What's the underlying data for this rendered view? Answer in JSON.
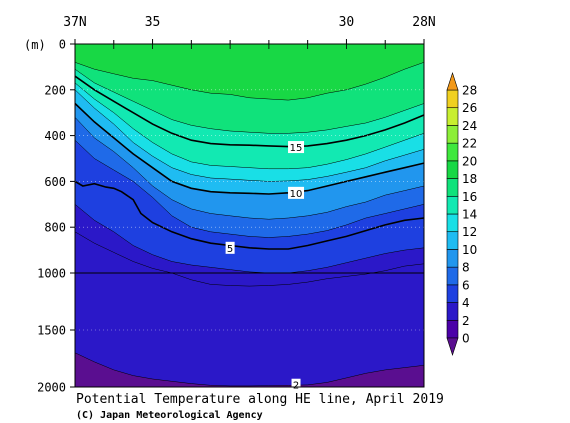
{
  "chart_data": {
    "type": "heatmap",
    "title": "Potential Temperature along HE line, April 2019",
    "credit": "(C) Japan Meteorological Agency",
    "y_unit_label": "(m)",
    "x_ticks": [
      {
        "value": 37,
        "label": "37N"
      },
      {
        "value": 35,
        "label": "35"
      },
      {
        "value": 30,
        "label": "30"
      },
      {
        "value": 28,
        "label": "28N"
      }
    ],
    "x_minor_ticks": [
      36,
      34,
      33,
      32,
      31,
      29
    ],
    "x_range": [
      37,
      28
    ],
    "y_ticks": [
      0,
      200,
      400,
      600,
      800,
      1000,
      1500,
      2000
    ],
    "y_break_depth": 1000,
    "depth_range": [
      0,
      2000
    ],
    "colorbar": {
      "levels": [
        0,
        2,
        4,
        6,
        8,
        10,
        12,
        14,
        16,
        18,
        20,
        22,
        24,
        26,
        28
      ],
      "colors": [
        "#4b00a8",
        "#2b18c8",
        "#1e40e0",
        "#1f6ae8",
        "#2196ee",
        "#1fbcf2",
        "#19dfe6",
        "#12e9b2",
        "#10e27b",
        "#18d845",
        "#3fe83d",
        "#8cef38",
        "#c8ef30",
        "#f0d020",
        "#f29818"
      ],
      "under_color": "#5a0e90",
      "over_color": "#f29818"
    },
    "contour_labels": [
      {
        "text": "15",
        "lat": 31.3,
        "depth": 450
      },
      {
        "text": "10",
        "lat": 31.3,
        "depth": 650
      },
      {
        "text": "5",
        "lat": 33.0,
        "depth": 890
      },
      {
        "text": "2",
        "lat": 31.3,
        "depth": 1980
      }
    ],
    "isotherms": [
      {
        "temp": 18,
        "points": [
          [
            37,
            80
          ],
          [
            36.5,
            110
          ],
          [
            36,
            130
          ],
          [
            35.5,
            150
          ],
          [
            35,
            160
          ],
          [
            34.5,
            180
          ],
          [
            34,
            200
          ],
          [
            33.5,
            215
          ],
          [
            33,
            220
          ],
          [
            32.5,
            235
          ],
          [
            32,
            240
          ],
          [
            31.5,
            245
          ],
          [
            31,
            235
          ],
          [
            30.5,
            215
          ],
          [
            30,
            200
          ],
          [
            29.5,
            175
          ],
          [
            29,
            145
          ],
          [
            28.5,
            110
          ],
          [
            28,
            80
          ]
        ]
      },
      {
        "temp": 16,
        "points": [
          [
            37,
            110
          ],
          [
            36.5,
            170
          ],
          [
            36,
            210
          ],
          [
            35.5,
            250
          ],
          [
            35,
            290
          ],
          [
            34.5,
            330
          ],
          [
            34,
            355
          ],
          [
            33.5,
            370
          ],
          [
            33,
            380
          ],
          [
            32.5,
            385
          ],
          [
            32,
            390
          ],
          [
            31.5,
            390
          ],
          [
            31,
            385
          ],
          [
            30.5,
            375
          ],
          [
            30,
            360
          ],
          [
            29.5,
            345
          ],
          [
            29,
            320
          ],
          [
            28.5,
            290
          ],
          [
            28,
            260
          ]
        ]
      },
      {
        "temp": 15,
        "points": [
          [
            37,
            140
          ],
          [
            36.5,
            200
          ],
          [
            36,
            250
          ],
          [
            35.5,
            300
          ],
          [
            35,
            350
          ],
          [
            34.5,
            390
          ],
          [
            34,
            420
          ],
          [
            33.5,
            435
          ],
          [
            33,
            440
          ],
          [
            32.5,
            442
          ],
          [
            32,
            445
          ],
          [
            31.5,
            448
          ],
          [
            31,
            445
          ],
          [
            30.5,
            435
          ],
          [
            30,
            420
          ],
          [
            29.5,
            400
          ],
          [
            29,
            375
          ],
          [
            28.5,
            345
          ],
          [
            28,
            310
          ]
        ]
      },
      {
        "temp": 14,
        "points": [
          [
            37,
            170
          ],
          [
            36.5,
            240
          ],
          [
            36,
            300
          ],
          [
            35.5,
            370
          ],
          [
            35,
            430
          ],
          [
            34.5,
            480
          ],
          [
            34,
            515
          ],
          [
            33.5,
            530
          ],
          [
            33,
            535
          ],
          [
            32.5,
            540
          ],
          [
            32,
            545
          ],
          [
            31.5,
            545
          ],
          [
            31,
            540
          ],
          [
            30.5,
            525
          ],
          [
            30,
            505
          ],
          [
            29.5,
            480
          ],
          [
            29,
            450
          ],
          [
            28.5,
            420
          ],
          [
            28,
            390
          ]
        ]
      },
      {
        "temp": 12,
        "points": [
          [
            37,
            200
          ],
          [
            36.5,
            280
          ],
          [
            36,
            350
          ],
          [
            35.5,
            430
          ],
          [
            35,
            490
          ],
          [
            34.5,
            540
          ],
          [
            34,
            570
          ],
          [
            33.5,
            585
          ],
          [
            33,
            590
          ],
          [
            32.5,
            595
          ],
          [
            32,
            600
          ],
          [
            31.5,
            598
          ],
          [
            31,
            592
          ],
          [
            30.5,
            578
          ],
          [
            30,
            560
          ],
          [
            29.5,
            540
          ],
          [
            29,
            510
          ],
          [
            28.5,
            485
          ],
          [
            28,
            460
          ]
        ]
      },
      {
        "temp": 10,
        "points": [
          [
            37,
            260
          ],
          [
            36.5,
            340
          ],
          [
            36,
            410
          ],
          [
            35.5,
            480
          ],
          [
            35,
            540
          ],
          [
            34.5,
            600
          ],
          [
            34,
            630
          ],
          [
            33.5,
            645
          ],
          [
            33,
            650
          ],
          [
            32.5,
            652
          ],
          [
            32,
            655
          ],
          [
            31.5,
            650
          ],
          [
            31,
            640
          ],
          [
            30.5,
            620
          ],
          [
            30,
            600
          ],
          [
            29.5,
            580
          ],
          [
            29,
            560
          ],
          [
            28.5,
            540
          ],
          [
            28,
            520
          ]
        ]
      },
      {
        "temp": 8,
        "points": [
          [
            37,
            320
          ],
          [
            36.5,
            410
          ],
          [
            36,
            470
          ],
          [
            35.5,
            540
          ],
          [
            35,
            620
          ],
          [
            34.5,
            680
          ],
          [
            34,
            720
          ],
          [
            33.5,
            740
          ],
          [
            33,
            750
          ],
          [
            32.5,
            760
          ],
          [
            32,
            765
          ],
          [
            31.5,
            760
          ],
          [
            31,
            750
          ],
          [
            30.5,
            735
          ],
          [
            30,
            710
          ],
          [
            29.5,
            690
          ],
          [
            29,
            660
          ],
          [
            28.5,
            640
          ],
          [
            28,
            620
          ]
        ]
      },
      {
        "temp": 6,
        "points": [
          [
            37,
            420
          ],
          [
            36.5,
            500
          ],
          [
            36,
            550
          ],
          [
            35.5,
            600
          ],
          [
            35,
            670
          ],
          [
            34.5,
            750
          ],
          [
            34,
            800
          ],
          [
            33.5,
            820
          ],
          [
            33,
            830
          ],
          [
            32.5,
            840
          ],
          [
            32,
            845
          ],
          [
            31.5,
            840
          ],
          [
            31,
            830
          ],
          [
            30.5,
            815
          ],
          [
            30,
            790
          ],
          [
            29.5,
            760
          ],
          [
            29,
            740
          ],
          [
            28.5,
            720
          ],
          [
            28,
            700
          ]
        ]
      },
      {
        "temp": 5,
        "points": [
          [
            37,
            600
          ],
          [
            36.8,
            620
          ],
          [
            36.5,
            610
          ],
          [
            36.2,
            625
          ],
          [
            36,
            630
          ],
          [
            35.8,
            645
          ],
          [
            35.5,
            680
          ],
          [
            35.3,
            740
          ],
          [
            35,
            780
          ],
          [
            34.5,
            820
          ],
          [
            34,
            850
          ],
          [
            33.5,
            870
          ],
          [
            33,
            880
          ],
          [
            32.5,
            890
          ],
          [
            32,
            895
          ],
          [
            31.5,
            895
          ],
          [
            31,
            880
          ],
          [
            30.5,
            860
          ],
          [
            30,
            840
          ],
          [
            29.5,
            815
          ],
          [
            29,
            790
          ],
          [
            28.5,
            770
          ],
          [
            28,
            760
          ]
        ]
      },
      {
        "temp": 4,
        "points": [
          [
            37,
            700
          ],
          [
            36.5,
            770
          ],
          [
            36,
            820
          ],
          [
            35.5,
            880
          ],
          [
            35,
            920
          ],
          [
            34.5,
            950
          ],
          [
            34,
            965
          ],
          [
            33.5,
            975
          ],
          [
            33,
            985
          ],
          [
            32.5,
            995
          ],
          [
            32,
            1000
          ],
          [
            31.5,
            1000
          ],
          [
            31,
            990
          ],
          [
            30.5,
            975
          ],
          [
            30,
            955
          ],
          [
            29.5,
            935
          ],
          [
            29,
            915
          ],
          [
            28.5,
            900
          ],
          [
            28,
            890
          ]
        ]
      },
      {
        "temp": 3,
        "points": [
          [
            37,
            820
          ],
          [
            36.5,
            870
          ],
          [
            36,
            910
          ],
          [
            35.5,
            950
          ],
          [
            35,
            980
          ],
          [
            34.5,
            1000
          ],
          [
            34,
            1060
          ],
          [
            33.5,
            1100
          ],
          [
            33,
            1110
          ],
          [
            32.5,
            1115
          ],
          [
            32,
            1110
          ],
          [
            31.5,
            1100
          ],
          [
            31,
            1080
          ],
          [
            30.5,
            1050
          ],
          [
            30,
            1030
          ],
          [
            29.5,
            1010
          ],
          [
            29,
            990
          ],
          [
            28.5,
            970
          ],
          [
            28,
            960
          ]
        ]
      },
      {
        "temp": 2,
        "points": [
          [
            37,
            1700
          ],
          [
            36.5,
            1780
          ],
          [
            36,
            1850
          ],
          [
            35.5,
            1900
          ],
          [
            35,
            1930
          ],
          [
            34.5,
            1950
          ],
          [
            34,
            1970
          ],
          [
            33.5,
            1985
          ],
          [
            33,
            1990
          ],
          [
            32.5,
            1990
          ],
          [
            32,
            1988
          ],
          [
            31.5,
            1985
          ],
          [
            31,
            1982
          ],
          [
            30.5,
            1960
          ],
          [
            30,
            1920
          ],
          [
            29.5,
            1880
          ],
          [
            29,
            1850
          ],
          [
            28.5,
            1830
          ],
          [
            28,
            1810
          ]
        ]
      }
    ]
  }
}
